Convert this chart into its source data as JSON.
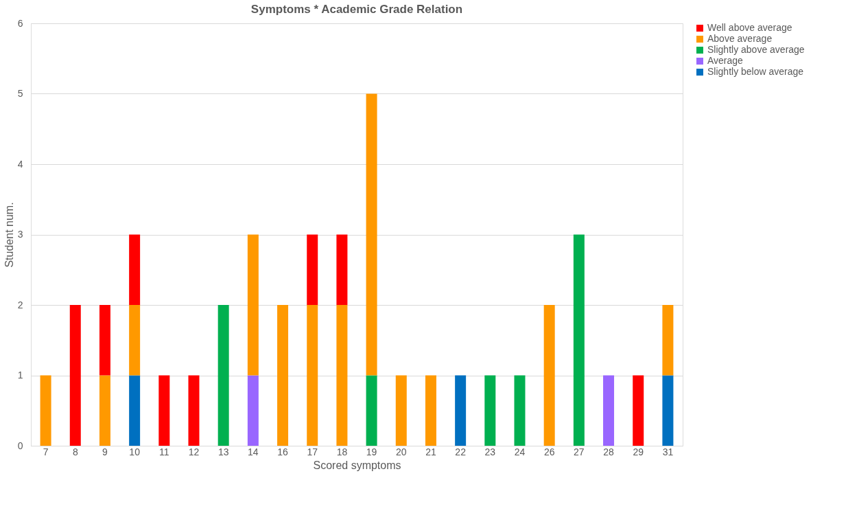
{
  "chart_data": {
    "type": "bar",
    "title": "Symptoms * Academic Grade Relation",
    "xlabel": "Scored symptoms",
    "ylabel": "Student num.",
    "categories": [
      "7",
      "8",
      "9",
      "10",
      "11",
      "12",
      "13",
      "14",
      "16",
      "17",
      "18",
      "19",
      "20",
      "21",
      "22",
      "23",
      "24",
      "26",
      "27",
      "28",
      "29",
      "31"
    ],
    "stacked": true,
    "series": [
      {
        "name": "Slightly below average",
        "color": "#0070c0",
        "values": [
          null,
          null,
          null,
          1,
          null,
          null,
          null,
          null,
          null,
          null,
          null,
          null,
          null,
          null,
          1,
          null,
          null,
          null,
          null,
          null,
          null,
          1
        ]
      },
      {
        "name": "Average",
        "color": "#9966ff",
        "values": [
          null,
          null,
          null,
          null,
          null,
          null,
          null,
          1,
          null,
          null,
          null,
          null,
          null,
          null,
          null,
          null,
          null,
          null,
          null,
          1,
          null,
          null
        ]
      },
      {
        "name": "Slightly above average",
        "color": "#00b050",
        "values": [
          null,
          null,
          null,
          null,
          null,
          null,
          2,
          null,
          null,
          null,
          null,
          1,
          null,
          null,
          null,
          1,
          1,
          null,
          3,
          null,
          null,
          null
        ]
      },
      {
        "name": "Above average",
        "color": "#ff9900",
        "values": [
          1,
          null,
          1,
          1,
          null,
          null,
          null,
          2,
          2,
          2,
          2,
          4,
          1,
          1,
          null,
          null,
          null,
          2,
          null,
          null,
          null,
          1
        ]
      },
      {
        "name": "Well above average",
        "color": "#ff0000",
        "values": [
          null,
          2,
          1,
          1,
          1,
          1,
          null,
          null,
          null,
          1,
          1,
          null,
          null,
          null,
          null,
          null,
          null,
          null,
          null,
          null,
          1,
          null
        ]
      }
    ],
    "ylim": [
      0,
      6
    ],
    "yticks": [
      0,
      1,
      2,
      3,
      4,
      5,
      6
    ],
    "grid": "y",
    "legend": "right"
  }
}
